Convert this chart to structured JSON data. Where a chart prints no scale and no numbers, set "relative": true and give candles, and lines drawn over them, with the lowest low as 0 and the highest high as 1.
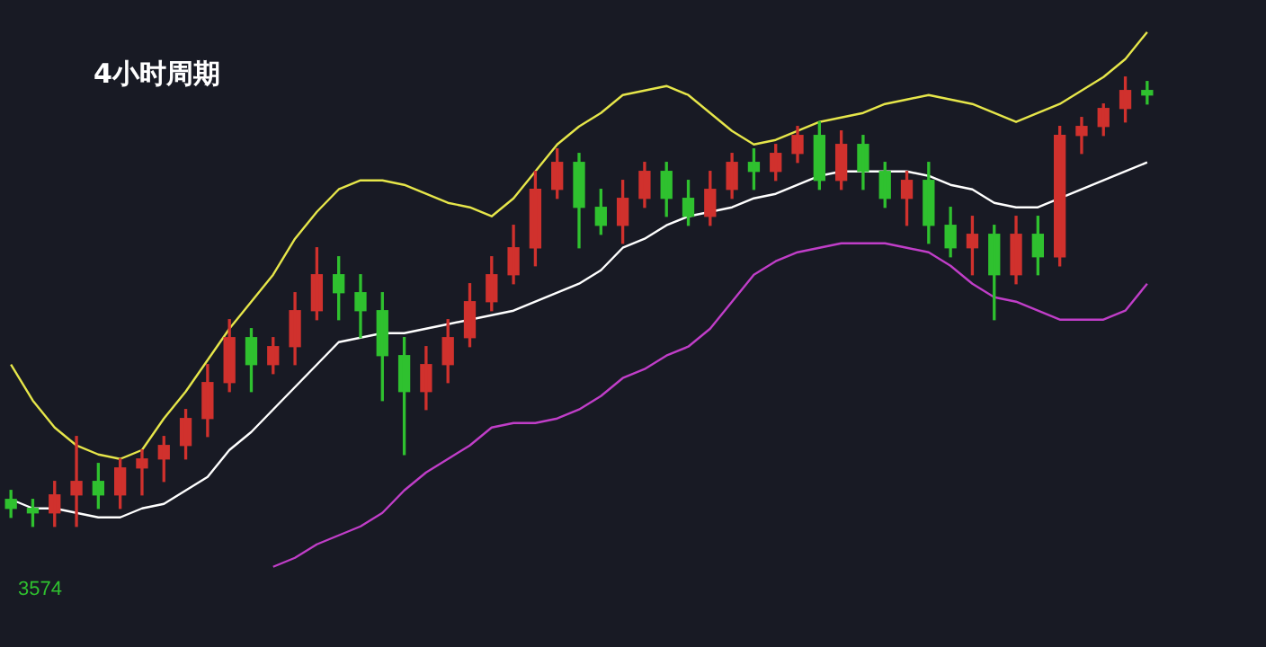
{
  "chart_data": {
    "type": "candlestick",
    "title": "4小时周期",
    "relative": true,
    "categories": [
      null,
      null,
      null,
      null,
      null,
      null,
      null,
      null,
      null,
      null,
      null,
      null,
      null,
      null,
      null,
      null,
      null,
      null,
      null,
      null,
      null,
      null,
      null,
      null,
      null,
      null,
      null,
      null,
      null,
      null,
      null,
      null,
      null,
      null,
      null,
      null,
      null,
      null,
      null,
      null,
      null,
      null,
      null,
      null,
      null,
      null,
      null,
      null,
      null,
      null,
      null,
      null,
      null
    ],
    "ohlc": [
      [
        0.06,
        0.08,
        0.02,
        0.04
      ],
      [
        0.04,
        0.06,
        0,
        0.03
      ],
      [
        0.03,
        0.1,
        0,
        0.07
      ],
      [
        0.07,
        0.2,
        0,
        0.1
      ],
      [
        0.1,
        0.14,
        0.04,
        0.07
      ],
      [
        0.07,
        0.15,
        0.04,
        0.13
      ],
      [
        0.13,
        0.17,
        0.07,
        0.15
      ],
      [
        0.15,
        0.2,
        0.1,
        0.18
      ],
      [
        0.18,
        0.26,
        0.15,
        0.24
      ],
      [
        0.24,
        0.36,
        0.2,
        0.32
      ],
      [
        0.32,
        0.46,
        0.3,
        0.42
      ],
      [
        0.42,
        0.44,
        0.3,
        0.36
      ],
      [
        0.36,
        0.42,
        0.34,
        0.4
      ],
      [
        0.4,
        0.52,
        0.36,
        0.48
      ],
      [
        0.48,
        0.62,
        0.46,
        0.56
      ],
      [
        0.56,
        0.6,
        0.46,
        0.52
      ],
      [
        0.52,
        0.56,
        0.42,
        0.48
      ],
      [
        0.48,
        0.52,
        0.28,
        0.38
      ],
      [
        0.38,
        0.42,
        0.16,
        0.3
      ],
      [
        0.3,
        0.4,
        0.26,
        0.36
      ],
      [
        0.36,
        0.46,
        0.32,
        0.42
      ],
      [
        0.42,
        0.54,
        0.4,
        0.5
      ],
      [
        0.5,
        0.6,
        0.48,
        0.56
      ],
      [
        0.56,
        0.67,
        0.54,
        0.62
      ],
      [
        0.62,
        0.79,
        0.58,
        0.75
      ],
      [
        0.75,
        0.84,
        0.73,
        0.81
      ],
      [
        0.81,
        0.83,
        0.62,
        0.71
      ],
      [
        0.71,
        0.75,
        0.65,
        0.67
      ],
      [
        0.67,
        0.77,
        0.63,
        0.73
      ],
      [
        0.73,
        0.81,
        0.71,
        0.79
      ],
      [
        0.79,
        0.81,
        0.69,
        0.73
      ],
      [
        0.73,
        0.77,
        0.67,
        0.69
      ],
      [
        0.69,
        0.79,
        0.67,
        0.75
      ],
      [
        0.75,
        0.83,
        0.73,
        0.81
      ],
      [
        0.81,
        0.84,
        0.75,
        0.79
      ],
      [
        0.79,
        0.85,
        0.77,
        0.83
      ],
      [
        0.83,
        0.89,
        0.81,
        0.87
      ],
      [
        0.87,
        0.9,
        0.75,
        0.77
      ],
      [
        0.77,
        0.88,
        0.75,
        0.85
      ],
      [
        0.85,
        0.87,
        0.75,
        0.79
      ],
      [
        0.79,
        0.81,
        0.71,
        0.73
      ],
      [
        0.73,
        0.79,
        0.67,
        0.77
      ],
      [
        0.77,
        0.81,
        0.63,
        0.67
      ],
      [
        0.67,
        0.71,
        0.6,
        0.62
      ],
      [
        0.62,
        0.69,
        0.56,
        0.65
      ],
      [
        0.65,
        0.67,
        0.46,
        0.56
      ],
      [
        0.56,
        0.69,
        0.54,
        0.65
      ],
      [
        0.65,
        0.69,
        0.56,
        0.6
      ],
      [
        0.6,
        0.89,
        0.58,
        0.87
      ],
      [
        0.87,
        0.91,
        0.83,
        0.89
      ],
      [
        0.89,
        0.94,
        0.87,
        0.93
      ],
      [
        0.93,
        1,
        0.9,
        0.97
      ],
      [
        0.97,
        0.99,
        0.94,
        0.96
      ]
    ],
    "colors": [
      "#2fc12f",
      "#2fc12f",
      "#d0312d",
      "#d0312d",
      "#2fc12f",
      "#d0312d",
      "#d0312d",
      "#d0312d",
      "#d0312d",
      "#d0312d",
      "#d0312d",
      "#2fc12f",
      "#d0312d",
      "#d0312d",
      "#d0312d",
      "#2fc12f",
      "#2fc12f",
      "#2fc12f",
      "#2fc12f",
      "#d0312d",
      "#d0312d",
      "#d0312d",
      "#d0312d",
      "#d0312d",
      "#d0312d",
      "#d0312d",
      "#2fc12f",
      "#2fc12f",
      "#d0312d",
      "#d0312d",
      "#2fc12f",
      "#2fc12f",
      "#d0312d",
      "#d0312d",
      "#2fc12f",
      "#d0312d",
      "#d0312d",
      "#2fc12f",
      "#d0312d",
      "#2fc12f",
      "#2fc12f",
      "#d0312d",
      "#2fc12f",
      "#2fc12f",
      "#d0312d",
      "#2fc12f",
      "#d0312d",
      "#2fc12f",
      "#d0312d",
      "#d0312d",
      "#d0312d",
      "#d0312d",
      "#2fc12f"
    ],
    "series": [
      {
        "type": "line",
        "color": "#e6e64a",
        "values": [
          0.36,
          0.28,
          0.22,
          0.18,
          0.16,
          0.15,
          0.17,
          0.24,
          0.3,
          0.37,
          0.44,
          0.5,
          0.56,
          0.64,
          0.7,
          0.75,
          0.77,
          0.77,
          0.76,
          0.74,
          0.72,
          0.71,
          0.69,
          0.73,
          0.79,
          0.85,
          0.89,
          0.92,
          0.96,
          0.97,
          0.98,
          0.96,
          0.92,
          0.88,
          0.85,
          0.86,
          0.88,
          0.9,
          0.91,
          0.92,
          0.94,
          0.95,
          0.96,
          0.95,
          0.94,
          0.92,
          0.9,
          0.92,
          0.94,
          0.97,
          1.0,
          1.04,
          1.1
        ]
      },
      {
        "type": "line",
        "color": "#ffffff",
        "values": [
          0.06,
          0.04,
          0.04,
          0.03,
          0.02,
          0.02,
          0.04,
          0.05,
          0.08,
          0.11,
          0.17,
          0.21,
          0.26,
          0.31,
          0.36,
          0.41,
          0.42,
          0.43,
          0.43,
          0.44,
          0.45,
          0.46,
          0.47,
          0.48,
          0.5,
          0.52,
          0.54,
          0.57,
          0.62,
          0.64,
          0.67,
          0.69,
          0.7,
          0.71,
          0.73,
          0.74,
          0.76,
          0.78,
          0.79,
          0.79,
          0.79,
          0.79,
          0.78,
          0.76,
          0.75,
          0.72,
          0.71,
          0.71,
          0.73,
          0.75,
          0.77,
          0.79,
          0.81
        ]
      },
      {
        "type": "line",
        "color": "#c03ec8",
        "values": [
          null,
          null,
          null,
          null,
          null,
          null,
          null,
          null,
          null,
          null,
          null,
          null,
          -0.09,
          -0.07,
          -0.04,
          -0.02,
          0,
          0.03,
          0.08,
          0.12,
          0.15,
          0.18,
          0.22,
          0.23,
          0.23,
          0.24,
          0.26,
          0.29,
          0.33,
          0.35,
          0.38,
          0.4,
          0.44,
          0.5,
          0.56,
          0.59,
          0.61,
          0.62,
          0.63,
          0.63,
          0.63,
          0.62,
          0.61,
          0.58,
          0.54,
          0.51,
          0.5,
          0.48,
          0.46,
          0.46,
          0.46,
          0.48,
          0.54
        ]
      }
    ],
    "annotations": [
      "3574"
    ],
    "marker": "none"
  }
}
